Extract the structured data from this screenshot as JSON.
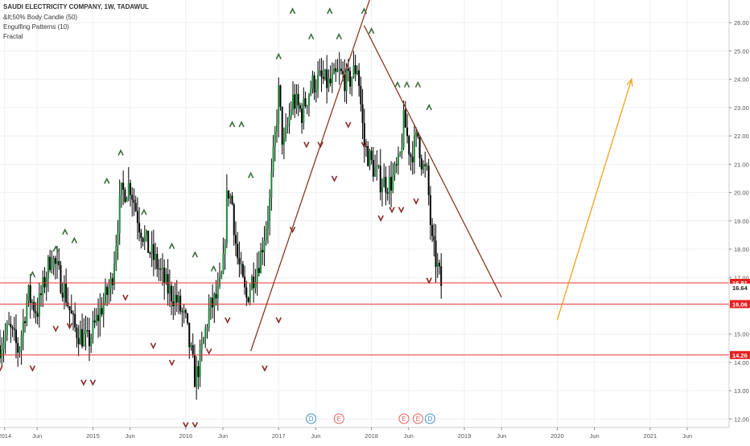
{
  "header": {
    "title": "SAUDI ELECTRICITY COMPANY, 1W, TADAWUL",
    "indicator_1": "&lt;50% Body Candle (50)",
    "indicator_2": "Engulfing Patterns (10)",
    "indicator_3": "Fractal"
  },
  "colors": {
    "candle_up": "#1f8a3a",
    "candle_down": "#000000",
    "trendline": "#8b3a1e",
    "forecast_arrow": "#f0a020",
    "support_line": "#e83030",
    "grid": "#eef0f3",
    "axis_text": "#555555",
    "price_label_bg": "#e82020"
  },
  "chart_data": {
    "type": "candlestick",
    "symbol": "SAUDI ELECTRICITY COMPANY",
    "interval": "1W",
    "exchange": "TADAWUL",
    "ylim": [
      11.7,
      26.8
    ],
    "y_ticks": [
      "12.00",
      "13.00",
      "14.00",
      "15.00",
      "16.00",
      "17.00",
      "18.00",
      "19.00",
      "20.00",
      "21.00",
      "22.00",
      "23.00",
      "24.00",
      "25.00",
      "26.00"
    ],
    "x_ticks": [
      "2014",
      "Jun",
      "2015",
      "Jun",
      "2016",
      "Jun",
      "2017",
      "Jun",
      "2018",
      "Jun",
      "2019",
      "Jun",
      "2020",
      "Jun",
      "2021",
      "Jun"
    ],
    "x_tick_years": [
      2014.05,
      2014.4,
      2015.0,
      2015.4,
      2016.0,
      2016.4,
      2017.0,
      2017.4,
      2018.0,
      2018.4,
      2019.0,
      2019.4,
      2020.0,
      2020.4,
      2021.0,
      2021.4
    ],
    "xlim": [
      2014.0,
      2021.85
    ],
    "price_trace": [
      [
        2014.0,
        14.6
      ],
      [
        2014.1,
        15.2
      ],
      [
        2014.2,
        14.4
      ],
      [
        2014.3,
        16.4
      ],
      [
        2014.4,
        15.8
      ],
      [
        2014.55,
        17.8
      ],
      [
        2014.7,
        16.5
      ],
      [
        2014.8,
        15.2
      ],
      [
        2014.95,
        14.7
      ],
      [
        2015.1,
        16.0
      ],
      [
        2015.2,
        16.8
      ],
      [
        2015.3,
        19.9
      ],
      [
        2015.4,
        20.3
      ],
      [
        2015.5,
        18.9
      ],
      [
        2015.6,
        18.0
      ],
      [
        2015.7,
        17.4
      ],
      [
        2015.8,
        16.6
      ],
      [
        2015.9,
        16.2
      ],
      [
        2016.0,
        15.4
      ],
      [
        2016.05,
        14.4
      ],
      [
        2016.1,
        13.4
      ],
      [
        2016.15,
        14.0
      ],
      [
        2016.25,
        15.8
      ],
      [
        2016.35,
        16.4
      ],
      [
        2016.4,
        17.2
      ],
      [
        2016.45,
        20.2
      ],
      [
        2016.5,
        19.6
      ],
      [
        2016.55,
        17.8
      ],
      [
        2016.6,
        17.0
      ],
      [
        2016.65,
        16.2
      ],
      [
        2016.7,
        16.8
      ],
      [
        2016.8,
        17.7
      ],
      [
        2016.9,
        19.5
      ],
      [
        2017.0,
        23.5
      ],
      [
        2017.05,
        21.5
      ],
      [
        2017.15,
        23.3
      ],
      [
        2017.25,
        22.8
      ],
      [
        2017.35,
        23.8
      ],
      [
        2017.45,
        24.0
      ],
      [
        2017.55,
        23.8
      ],
      [
        2017.65,
        24.2
      ],
      [
        2017.75,
        23.9
      ],
      [
        2017.85,
        24.5
      ],
      [
        2017.92,
        21.7
      ],
      [
        2018.0,
        21.0
      ],
      [
        2018.1,
        20.4
      ],
      [
        2018.2,
        20.3
      ],
      [
        2018.3,
        21.0
      ],
      [
        2018.35,
        22.6
      ],
      [
        2018.42,
        21.3
      ],
      [
        2018.5,
        22.0
      ],
      [
        2018.55,
        20.9
      ],
      [
        2018.6,
        20.6
      ],
      [
        2018.65,
        18.2
      ],
      [
        2018.7,
        17.5
      ],
      [
        2018.75,
        16.75
      ]
    ],
    "support_levels": [
      16.81,
      16.06,
      14.26
    ],
    "price_labels": [
      "16.81",
      "16.64",
      "16.06",
      "14.26"
    ],
    "last_price": 16.64,
    "trendlines": [
      {
        "name": "rising-trendline",
        "from": [
          2016.7,
          14.4
        ],
        "to": [
          2018.0,
          27.0
        ]
      },
      {
        "name": "falling-trendline",
        "from": [
          2017.92,
          25.9
        ],
        "to": [
          2019.4,
          16.3
        ]
      }
    ],
    "forecast_arrow": {
      "from": [
        2020.0,
        15.5
      ],
      "to": [
        2020.8,
        24.0
      ]
    },
    "fractal_marks": {
      "up": [
        [
          2014.35,
          17.1
        ],
        [
          2014.6,
          18.0
        ],
        [
          2014.7,
          18.6
        ],
        [
          2014.8,
          18.3
        ],
        [
          2015.15,
          20.4
        ],
        [
          2015.3,
          21.4
        ],
        [
          2015.55,
          19.3
        ],
        [
          2015.85,
          18.1
        ],
        [
          2016.1,
          17.8
        ],
        [
          2016.3,
          17.3
        ],
        [
          2016.5,
          22.4
        ],
        [
          2016.6,
          22.4
        ],
        [
          2016.7,
          20.6
        ],
        [
          2017.0,
          24.8
        ],
        [
          2017.15,
          26.4
        ],
        [
          2017.35,
          25.5
        ],
        [
          2017.55,
          26.4
        ],
        [
          2017.65,
          25.5
        ],
        [
          2017.92,
          26.4
        ],
        [
          2018.0,
          25.7
        ],
        [
          2018.28,
          23.8
        ],
        [
          2018.38,
          23.8
        ],
        [
          2018.5,
          23.8
        ],
        [
          2018.62,
          23.0
        ]
      ],
      "down": [
        [
          2014.0,
          13.8
        ],
        [
          2014.35,
          13.8
        ],
        [
          2014.6,
          15.2
        ],
        [
          2014.75,
          15.3
        ],
        [
          2014.9,
          13.3
        ],
        [
          2015.0,
          13.3
        ],
        [
          2015.35,
          16.3
        ],
        [
          2015.65,
          14.6
        ],
        [
          2015.85,
          14.0
        ],
        [
          2016.0,
          11.8
        ],
        [
          2016.1,
          11.8
        ],
        [
          2016.25,
          14.4
        ],
        [
          2016.45,
          15.5
        ],
        [
          2016.85,
          13.8
        ],
        [
          2017.0,
          15.5
        ],
        [
          2017.15,
          18.7
        ],
        [
          2017.3,
          21.7
        ],
        [
          2017.45,
          21.7
        ],
        [
          2017.6,
          20.5
        ],
        [
          2017.75,
          22.4
        ],
        [
          2017.92,
          21.7
        ],
        [
          2018.1,
          19.1
        ],
        [
          2018.22,
          19.4
        ],
        [
          2018.32,
          19.4
        ],
        [
          2018.48,
          19.7
        ],
        [
          2018.62,
          16.9
        ]
      ]
    },
    "events": [
      {
        "symbol": "D",
        "x": 2017.35,
        "color": "#3f8fd0"
      },
      {
        "symbol": "E",
        "x": 2017.65,
        "color": "#e06060"
      },
      {
        "symbol": "E",
        "x": 2018.35,
        "color": "#e06060"
      },
      {
        "symbol": "E",
        "x": 2018.5,
        "color": "#e06060"
      },
      {
        "symbol": "D",
        "x": 2018.63,
        "color": "#3f8fd0"
      }
    ]
  }
}
